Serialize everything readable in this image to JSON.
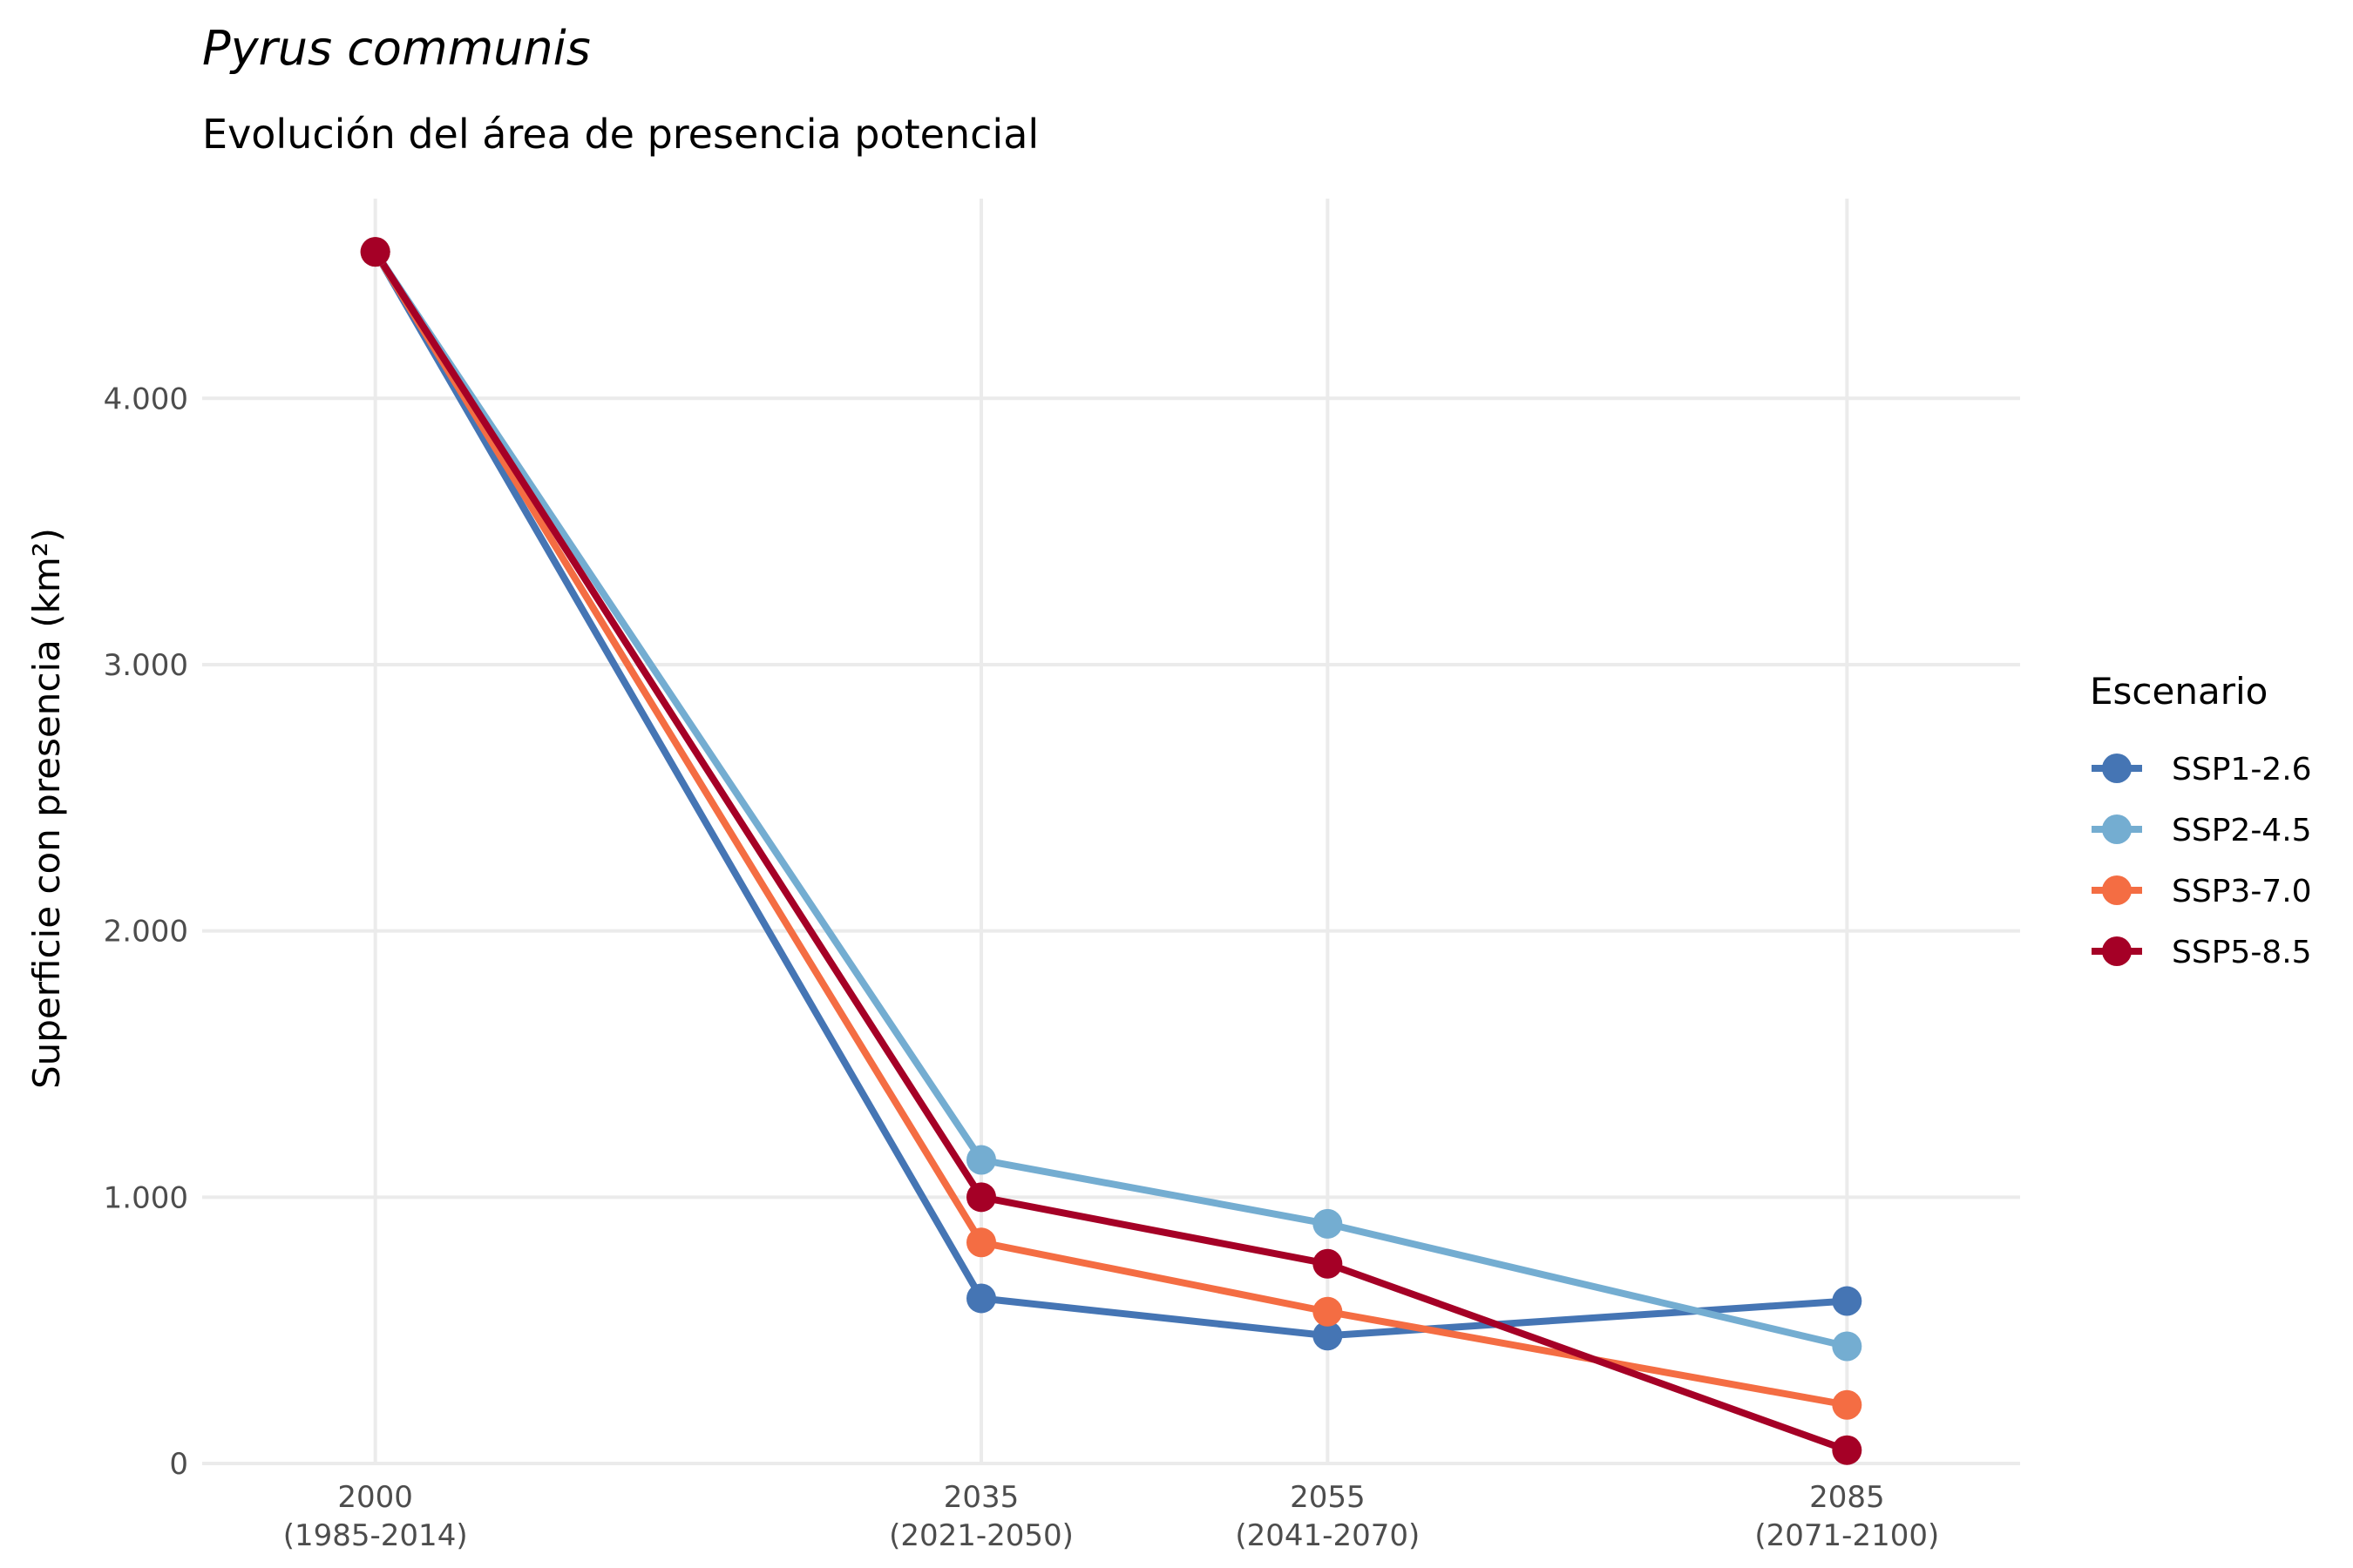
{
  "chart_data": {
    "type": "line",
    "title": "Pyrus communis",
    "subtitle": "Evolución del área de presencia potencial",
    "ylabel": "Superficie con presencia (km²)",
    "x": [
      2000,
      2035,
      2055,
      2085
    ],
    "x_tick_labels": [
      [
        "2000",
        "(1985-2014)"
      ],
      [
        "2035",
        "(2021-2050)"
      ],
      [
        "2055",
        "(2041-2070)"
      ],
      [
        "2085",
        "(2071-2100)"
      ]
    ],
    "xlim": [
      1990,
      2095
    ],
    "ylim": [
      0,
      4750
    ],
    "y_ticks": [
      0,
      1000,
      2000,
      3000,
      4000
    ],
    "y_tick_labels": [
      "0",
      "1.000",
      "2.000",
      "3.000",
      "4.000"
    ],
    "grid": true,
    "legend": {
      "title": "Escenario",
      "position": "right"
    },
    "series": [
      {
        "name": "SSP1-2.6",
        "color": "#4575b4",
        "values": [
          4550,
          620,
          480,
          610
        ]
      },
      {
        "name": "SSP2-4.5",
        "color": "#74add1",
        "values": [
          4550,
          1140,
          900,
          440
        ]
      },
      {
        "name": "SSP3-7.0",
        "color": "#f46d43",
        "values": [
          4550,
          830,
          570,
          220
        ]
      },
      {
        "name": "SSP5-8.5",
        "color": "#a50026",
        "values": [
          4550,
          1000,
          750,
          50
        ]
      }
    ]
  }
}
